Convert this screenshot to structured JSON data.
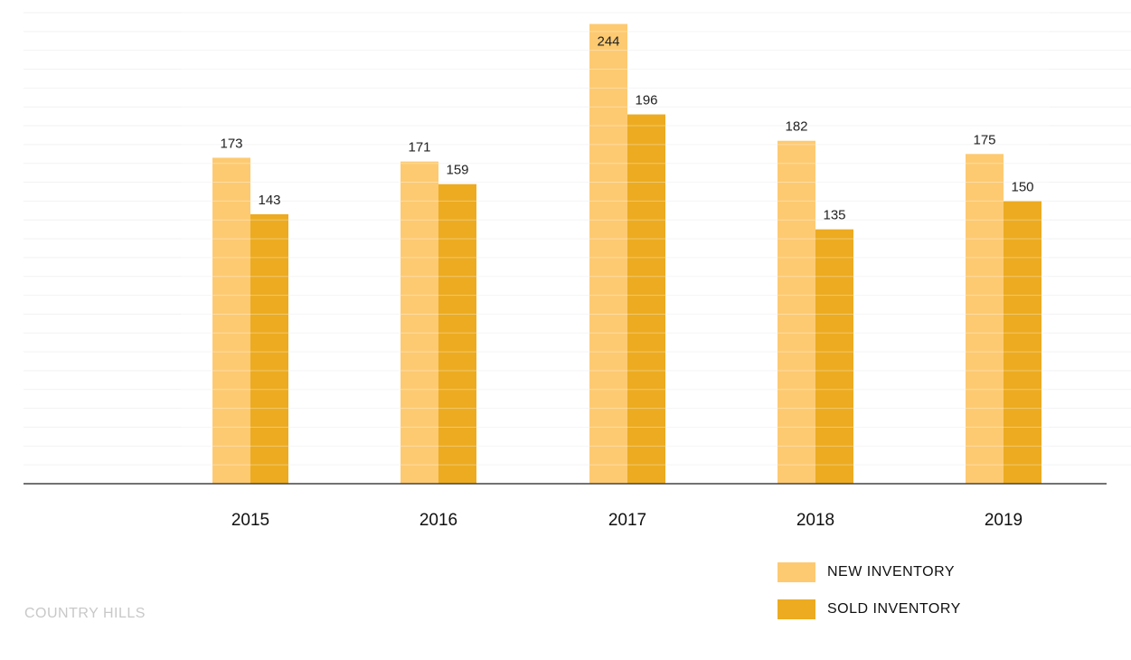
{
  "chart_data": {
    "type": "bar",
    "categories": [
      "2015",
      "2016",
      "2017",
      "2018",
      "2019"
    ],
    "series": [
      {
        "name": "NEW INVENTORY",
        "values": [
          173,
          171,
          244,
          182,
          175
        ],
        "color": "#fdca72"
      },
      {
        "name": "SOLD INVENTORY",
        "values": [
          143,
          159,
          196,
          135,
          150
        ],
        "color": "#ecab21"
      }
    ],
    "ylim": [
      0,
      250
    ],
    "grid": true,
    "legend": "bottom-right"
  },
  "footer": {
    "label": "COUNTRY HILLS"
  },
  "colors": {
    "grid": "#f2f2f2",
    "axis": "#444444",
    "band": "#ffffff"
  }
}
